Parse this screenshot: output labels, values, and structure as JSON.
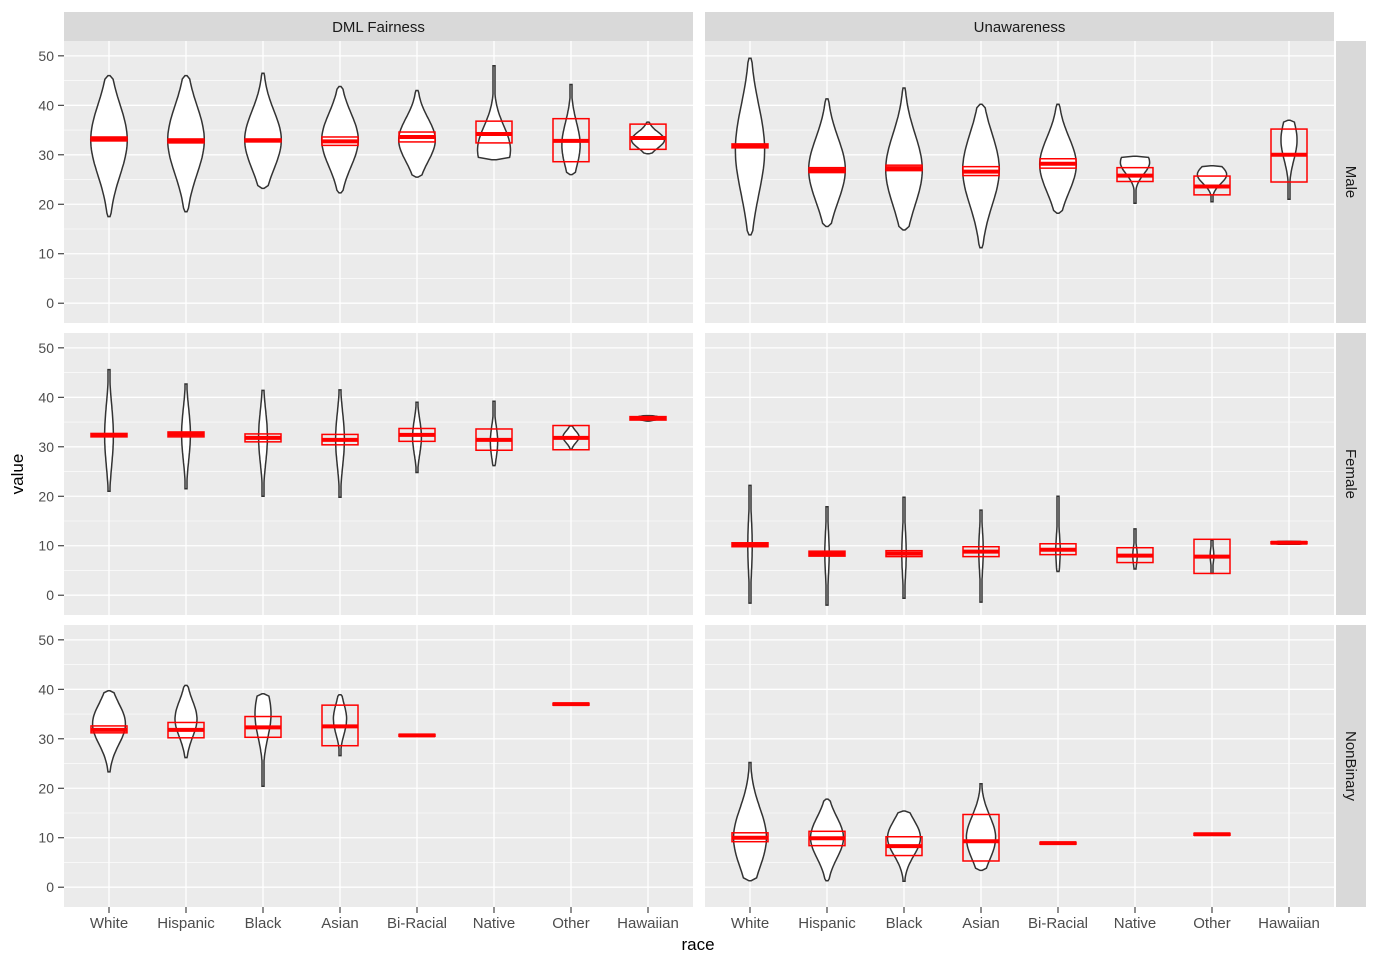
{
  "chart_data": {
    "type": "violin",
    "xlabel": "race",
    "ylabel": "value",
    "ylim": [
      -4,
      53
    ],
    "y_ticks": [
      0,
      10,
      20,
      30,
      40,
      50
    ],
    "tick_labels": [
      "0",
      "10",
      "20",
      "30",
      "40",
      "50"
    ],
    "categories": [
      "White",
      "Hispanic",
      "Black",
      "Asian",
      "Bi-Racial",
      "Native",
      "Other",
      "Hawaiian"
    ],
    "col_facets": [
      "DML Fairness",
      "Unawareness"
    ],
    "row_facets": [
      "Male",
      "Female",
      "NonBinary"
    ],
    "colors": {
      "panel_bg": "#EBEBEB",
      "grid_major": "#FFFFFF",
      "strip_bg": "#D9D9D9",
      "violin_line": "#333333",
      "box_line": "#FF0000",
      "text": "#4D4D4D",
      "title_text": "#000000",
      "strip_text": "#1A1A1A"
    },
    "panels": [
      {
        "row": 0,
        "col": 0,
        "groups": [
          {
            "category": "White",
            "min": 17.5,
            "max": 46,
            "widest_at": 33,
            "half_width": 0.5,
            "box": [
              32.8,
              33.6
            ],
            "median": 33.2
          },
          {
            "category": "Hispanic",
            "min": 18.5,
            "max": 46,
            "widest_at": 33,
            "half_width": 0.5,
            "box": [
              32.4,
              33.2
            ],
            "median": 32.8
          },
          {
            "category": "Black",
            "min": 23.2,
            "max": 46.5,
            "widest_at": 33,
            "half_width": 0.5,
            "box": [
              32.6,
              33.2
            ],
            "median": 32.9
          },
          {
            "category": "Asian",
            "min": 22.3,
            "max": 43.8,
            "widest_at": 33,
            "half_width": 0.5,
            "box": [
              31.9,
              33.6
            ],
            "median": 32.7
          },
          {
            "category": "Bi-Racial",
            "min": 25.5,
            "max": 43,
            "widest_at": 33,
            "half_width": 0.5,
            "box": [
              32.6,
              34.6
            ],
            "median": 33.6
          },
          {
            "category": "Native",
            "min": 29,
            "max": 48,
            "widest_at": 31,
            "half_width": 0.45,
            "box": [
              32.4,
              36.8
            ],
            "median": 34.2
          },
          {
            "category": "Other",
            "min": 26,
            "max": 44.2,
            "widest_at": 32,
            "half_width": 0.25,
            "box": [
              28.6,
              37.3
            ],
            "median": 32.8
          },
          {
            "category": "Hawaiian",
            "min": 30.2,
            "max": 36.6,
            "widest_at": 33,
            "half_width": 0.45,
            "box": [
              31.1,
              36.2
            ],
            "median": 33.4
          }
        ]
      },
      {
        "row": 0,
        "col": 1,
        "groups": [
          {
            "category": "White",
            "min": 13.8,
            "max": 49.5,
            "widest_at": 31,
            "half_width": 0.4,
            "box": [
              31.4,
              32.2
            ],
            "median": 31.8
          },
          {
            "category": "Hispanic",
            "min": 15.5,
            "max": 41.3,
            "widest_at": 27,
            "half_width": 0.5,
            "box": [
              26.4,
              27.4
            ],
            "median": 26.9
          },
          {
            "category": "Black",
            "min": 14.8,
            "max": 43.5,
            "widest_at": 27,
            "half_width": 0.5,
            "box": [
              26.8,
              27.9
            ],
            "median": 27.3
          },
          {
            "category": "Asian",
            "min": 11.2,
            "max": 40.2,
            "widest_at": 27,
            "half_width": 0.5,
            "box": [
              25.8,
              27.6
            ],
            "median": 26.6
          },
          {
            "category": "Bi-Racial",
            "min": 18.2,
            "max": 40.2,
            "widest_at": 28,
            "half_width": 0.5,
            "box": [
              27.3,
              29.2
            ],
            "median": 28.2
          },
          {
            "category": "Native",
            "min": 20.2,
            "max": 29.7,
            "widest_at": 28.5,
            "half_width": 0.4,
            "box": [
              24.6,
              27.4
            ],
            "median": 25.8
          },
          {
            "category": "Other",
            "min": 20.5,
            "max": 27.8,
            "widest_at": 26,
            "half_width": 0.4,
            "box": [
              21.9,
              25.7
            ],
            "median": 23.6
          },
          {
            "category": "Hawaiian",
            "min": 21,
            "max": 37,
            "widest_at": 33,
            "half_width": 0.22,
            "box": [
              24.5,
              35.2
            ],
            "median": 30
          }
        ]
      },
      {
        "row": 1,
        "col": 0,
        "groups": [
          {
            "category": "White",
            "min": 21,
            "max": 45.6,
            "widest_at": 32.3,
            "half_width": 0.12,
            "box": [
              32,
              32.7
            ],
            "median": 32.3
          },
          {
            "category": "Hispanic",
            "min": 21.5,
            "max": 42.7,
            "widest_at": 32.5,
            "half_width": 0.12,
            "box": [
              32,
              33
            ],
            "median": 32.5
          },
          {
            "category": "Black",
            "min": 20,
            "max": 41.4,
            "widest_at": 32,
            "half_width": 0.12,
            "box": [
              31,
              32.6
            ],
            "median": 31.8
          },
          {
            "category": "Asian",
            "min": 19.8,
            "max": 41.5,
            "widest_at": 31.5,
            "half_width": 0.12,
            "box": [
              30.4,
              32.5
            ],
            "median": 31.4
          },
          {
            "category": "Bi-Racial",
            "min": 24.8,
            "max": 39,
            "widest_at": 32,
            "half_width": 0.12,
            "box": [
              31.1,
              33.7
            ],
            "median": 32.4
          },
          {
            "category": "Native",
            "min": 26.2,
            "max": 39.2,
            "widest_at": 31,
            "half_width": 0.1,
            "box": [
              29.3,
              33.6
            ],
            "median": 31.4
          },
          {
            "category": "Other",
            "min": 29.5,
            "max": 34.2,
            "widest_at": 32,
            "half_width": 0.22,
            "box": [
              29.4,
              34.3
            ],
            "median": 31.8
          },
          {
            "category": "Hawaiian",
            "min": 35.2,
            "max": 36.3,
            "widest_at": 35.8,
            "half_width": 0.45,
            "box": [
              35.4,
              36.1
            ],
            "median": 35.8
          }
        ]
      },
      {
        "row": 1,
        "col": 1,
        "groups": [
          {
            "category": "White",
            "min": -1.6,
            "max": 22.2,
            "widest_at": 10,
            "half_width": 0.06,
            "box": [
              9.8,
              10.6
            ],
            "median": 10.2
          },
          {
            "category": "Hispanic",
            "min": -2,
            "max": 17.9,
            "widest_at": 8.5,
            "half_width": 0.06,
            "box": [
              7.9,
              8.9
            ],
            "median": 8.4
          },
          {
            "category": "Black",
            "min": -0.6,
            "max": 19.8,
            "widest_at": 8.5,
            "half_width": 0.06,
            "box": [
              7.8,
              9
            ],
            "median": 8.4
          },
          {
            "category": "Asian",
            "min": -1.4,
            "max": 17.2,
            "widest_at": 9,
            "half_width": 0.06,
            "box": [
              7.8,
              9.8
            ],
            "median": 8.8
          },
          {
            "category": "Bi-Racial",
            "min": 4.8,
            "max": 20,
            "widest_at": 9,
            "half_width": 0.06,
            "box": [
              8.2,
              10.4
            ],
            "median": 9.2
          },
          {
            "category": "Native",
            "min": 5.3,
            "max": 13.4,
            "widest_at": 8,
            "half_width": 0.06,
            "box": [
              6.6,
              9.6
            ],
            "median": 8
          },
          {
            "category": "Other",
            "min": 4.4,
            "max": 11.1,
            "widest_at": 8,
            "half_width": 0.05,
            "box": [
              4.4,
              11.3
            ],
            "median": 7.8
          },
          {
            "category": "Hawaiian",
            "min": 10.3,
            "max": 10.9,
            "widest_at": 10.6,
            "half_width": 0.45,
            "box": [
              10.4,
              10.8
            ],
            "median": 10.6
          }
        ]
      },
      {
        "row": 2,
        "col": 0,
        "groups": [
          {
            "category": "White",
            "min": 23.3,
            "max": 39.7,
            "widest_at": 33,
            "half_width": 0.45,
            "box": [
              31.2,
              32.6
            ],
            "median": 31.8
          },
          {
            "category": "Hispanic",
            "min": 26.2,
            "max": 40.8,
            "widest_at": 34,
            "half_width": 0.3,
            "box": [
              30.2,
              33.3
            ],
            "median": 31.8
          },
          {
            "category": "Black",
            "min": 20.4,
            "max": 39.1,
            "widest_at": 35,
            "half_width": 0.22,
            "box": [
              30.3,
              34.5
            ],
            "median": 32.3
          },
          {
            "category": "Asian",
            "min": 26.6,
            "max": 38.9,
            "widest_at": 34,
            "half_width": 0.18,
            "box": [
              28.6,
              36.8
            ],
            "median": 32.5
          },
          {
            "category": "Bi-Racial",
            "min": 30.5,
            "max": 30.9,
            "widest_at": 30.7,
            "half_width": 0.2,
            "box": [
              30.5,
              30.9
            ],
            "median": 30.7
          },
          {
            "category": "Other",
            "min": 36.8,
            "max": 37.2,
            "widest_at": 37,
            "half_width": 0.2,
            "box": [
              36.8,
              37.2
            ],
            "median": 37
          }
        ]
      },
      {
        "row": 2,
        "col": 1,
        "groups": [
          {
            "category": "White",
            "min": 1.3,
            "max": 25.2,
            "widest_at": 10,
            "half_width": 0.45,
            "box": [
              9.2,
              11
            ],
            "median": 10
          },
          {
            "category": "Hispanic",
            "min": 1.3,
            "max": 17.8,
            "widest_at": 10,
            "half_width": 0.45,
            "box": [
              8.4,
              11.3
            ],
            "median": 9.9
          },
          {
            "category": "Black",
            "min": 1.2,
            "max": 15.4,
            "widest_at": 10,
            "half_width": 0.45,
            "box": [
              6.4,
              10.2
            ],
            "median": 8.3
          },
          {
            "category": "Asian",
            "min": 3.4,
            "max": 20.9,
            "widest_at": 10,
            "half_width": 0.4,
            "box": [
              5.3,
              14.7
            ],
            "median": 9.3
          },
          {
            "category": "Bi-Racial",
            "min": 8.7,
            "max": 9.1,
            "widest_at": 8.9,
            "half_width": 0.2,
            "box": [
              8.7,
              9.1
            ],
            "median": 8.9
          },
          {
            "category": "Other",
            "min": 10.5,
            "max": 10.9,
            "widest_at": 10.7,
            "half_width": 0.2,
            "box": [
              10.5,
              10.9
            ],
            "median": 10.7
          }
        ]
      }
    ]
  }
}
